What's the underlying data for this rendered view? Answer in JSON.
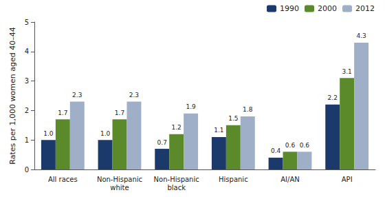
{
  "chart_data": {
    "type": "bar",
    "ylabel": "Rates per 1,000 women aged 40–44",
    "categories": [
      "All races",
      "Non-Hispanic\nwhite",
      "Non-Hispanic\nblack",
      "Hispanic",
      "AI/AN",
      "API"
    ],
    "series": [
      {
        "name": "1990",
        "color": "#1b3a6b",
        "values": [
          1.0,
          1.0,
          0.7,
          1.1,
          0.4,
          2.2
        ],
        "value_labels": [
          "1.0",
          "1.0",
          "0.7",
          "1.1",
          "0.4",
          "2.2"
        ]
      },
      {
        "name": "2000",
        "color": "#5a8a2a",
        "values": [
          1.7,
          1.7,
          1.2,
          1.5,
          0.6,
          3.1
        ],
        "value_labels": [
          "1.7",
          "1.7",
          "1.2",
          "1.5",
          "0.6",
          "3.1"
        ]
      },
      {
        "name": "2012",
        "color": "#9fafc8",
        "values": [
          2.3,
          2.3,
          1.9,
          1.8,
          0.6,
          4.3
        ],
        "value_labels": [
          "2.3",
          "2.3",
          "1.9",
          "1.8",
          "0.6",
          "4.3"
        ]
      }
    ],
    "ylim": [
      0,
      5
    ],
    "yticks": [
      0,
      1,
      2,
      3,
      4,
      5
    ],
    "grid": false,
    "legend": "upper right",
    "data_labels": true
  }
}
